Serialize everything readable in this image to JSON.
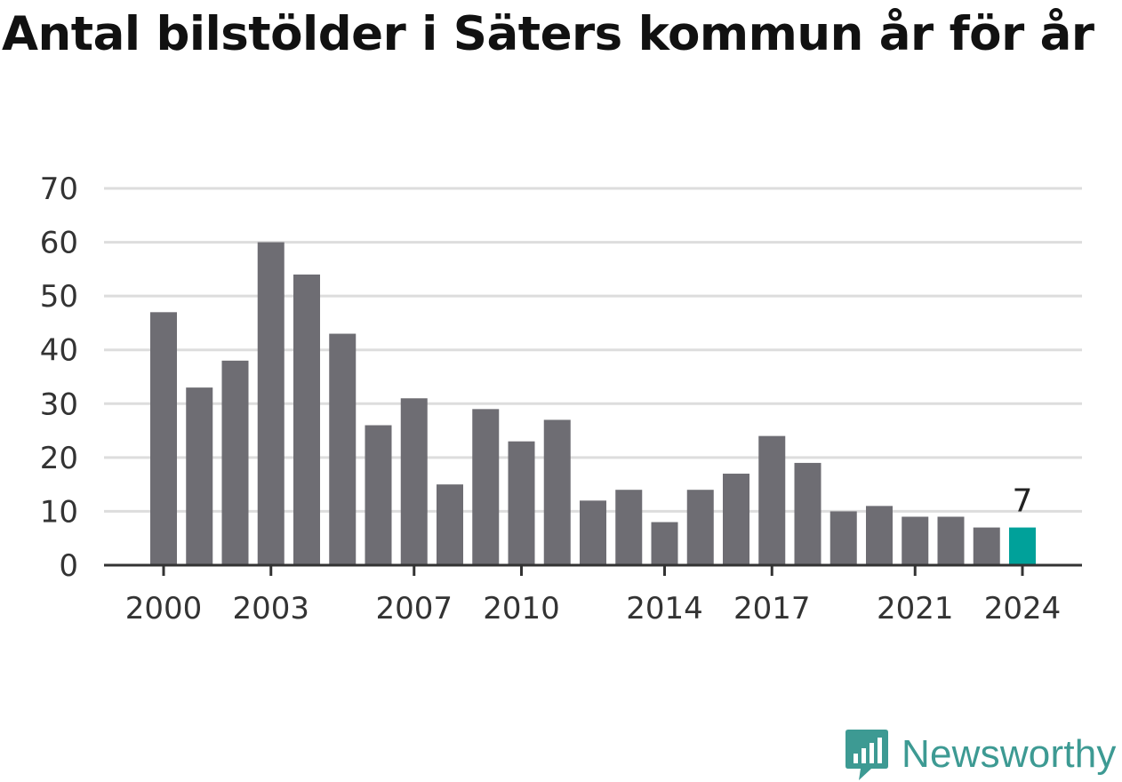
{
  "title": "Antal bilstölder i Säters kommun år för år",
  "brand": {
    "name": "Newsworthy",
    "color": "#3d9a93",
    "icon": "newsworthy-logo-icon"
  },
  "colors": {
    "bar": "#6e6d73",
    "highlight": "#00a19a",
    "grid": "#dddddd",
    "axis": "#333333"
  },
  "chart_data": {
    "type": "bar",
    "categories": [
      "2000",
      "2001",
      "2002",
      "2003",
      "2004",
      "2005",
      "2006",
      "2007",
      "2008",
      "2009",
      "2010",
      "2011",
      "2012",
      "2013",
      "2014",
      "2015",
      "2016",
      "2017",
      "2018",
      "2019",
      "2020",
      "2021",
      "2022",
      "2023",
      "2024"
    ],
    "values": [
      47,
      33,
      38,
      60,
      54,
      43,
      26,
      31,
      15,
      29,
      23,
      27,
      12,
      14,
      8,
      14,
      17,
      24,
      19,
      10,
      11,
      9,
      9,
      7,
      7
    ],
    "x_tick_labels": [
      "2000",
      "2003",
      "2007",
      "2010",
      "2014",
      "2017",
      "2021",
      "2024"
    ],
    "y_ticks": [
      0,
      10,
      20,
      30,
      40,
      50,
      60,
      70
    ],
    "ylim": [
      0,
      70
    ],
    "highlight_category": "2024",
    "data_labels": [
      {
        "category": "2024",
        "text": "7"
      }
    ],
    "grid": true,
    "legend": "none"
  }
}
